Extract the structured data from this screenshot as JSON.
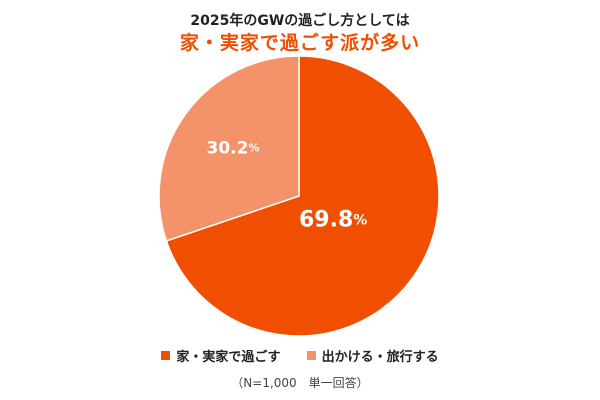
{
  "chart_data": {
    "type": "pie",
    "title": "2025年のGWの過ごし方としては",
    "subtitle": "家・実家で過ごす派が多い",
    "slices": [
      {
        "label": "家・実家で過ごす",
        "value": 69.8,
        "display": "69.8",
        "color": "#f04e00"
      },
      {
        "label": "出かける・旅行する",
        "value": 30.2,
        "display": "30.2",
        "color": "#f4926a"
      }
    ],
    "unit": "%",
    "note": "（N=1,000　単一回答）",
    "legend_position": "bottom"
  }
}
